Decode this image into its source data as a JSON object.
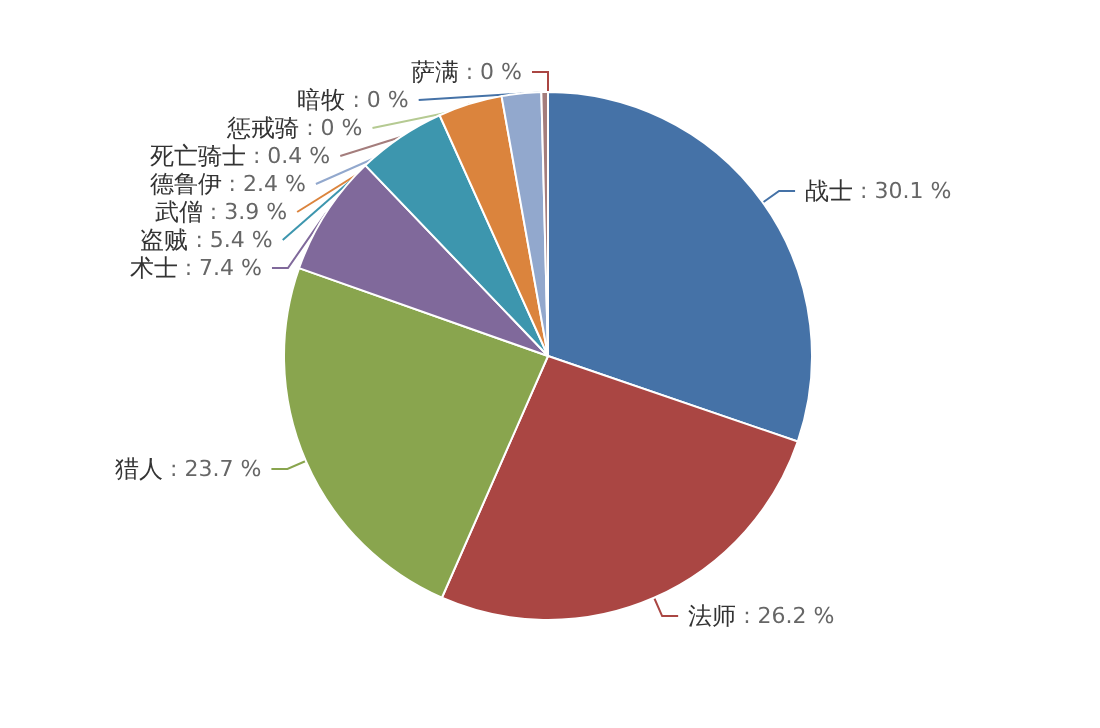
{
  "chart_data": {
    "type": "pie",
    "categories": [
      "战士",
      "法师",
      "猎人",
      "术士",
      "盗贼",
      "武僧",
      "德鲁伊",
      "死亡骑士",
      "萨满",
      "暗牧",
      "惩戒骑"
    ],
    "values": [
      30.1,
      26.2,
      23.7,
      7.4,
      5.4,
      3.9,
      2.4,
      0.4,
      0,
      0,
      0
    ],
    "value_labels": [
      ": 30.1 %",
      ": 26.2 %",
      ": 23.7 %",
      ": 7.4 %",
      ": 5.4 %",
      ": 3.9 %",
      ": 2.4 %",
      ": 0.4 %",
      ": 0 %",
      ": 0 %",
      ": 0 %"
    ],
    "colors": [
      "#4572a7",
      "#aa4643",
      "#89a54e",
      "#80699b",
      "#3d96ae",
      "#db843d",
      "#92a8cd",
      "#a47d7c",
      "#aa4643",
      "#4572a7",
      "#b5ca92"
    ],
    "legend": false
  }
}
